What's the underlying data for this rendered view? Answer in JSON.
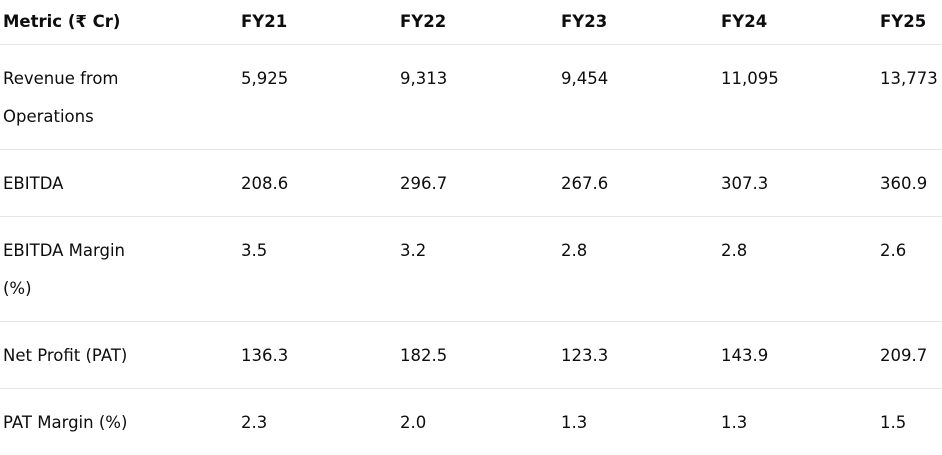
{
  "table": {
    "header": [
      "Metric (₹ Cr)",
      "FY21",
      "FY22",
      "FY23",
      "FY24",
      "FY25"
    ],
    "rows": [
      [
        "Revenue from Operations",
        "5,925",
        "9,313",
        "9,454",
        "11,095",
        "13,773"
      ],
      [
        "EBITDA",
        "208.6",
        "296.7",
        "267.6",
        "307.3",
        "360.9"
      ],
      [
        "EBITDA Margin (%)",
        "3.5",
        "3.2",
        "2.8",
        "2.8",
        "2.6"
      ],
      [
        "Net Profit (PAT)",
        "136.3",
        "182.5",
        "123.3",
        "143.9",
        "209.7"
      ],
      [
        "PAT Margin (%)",
        "2.3",
        "2.0",
        "1.3",
        "1.3",
        "1.5"
      ]
    ]
  }
}
